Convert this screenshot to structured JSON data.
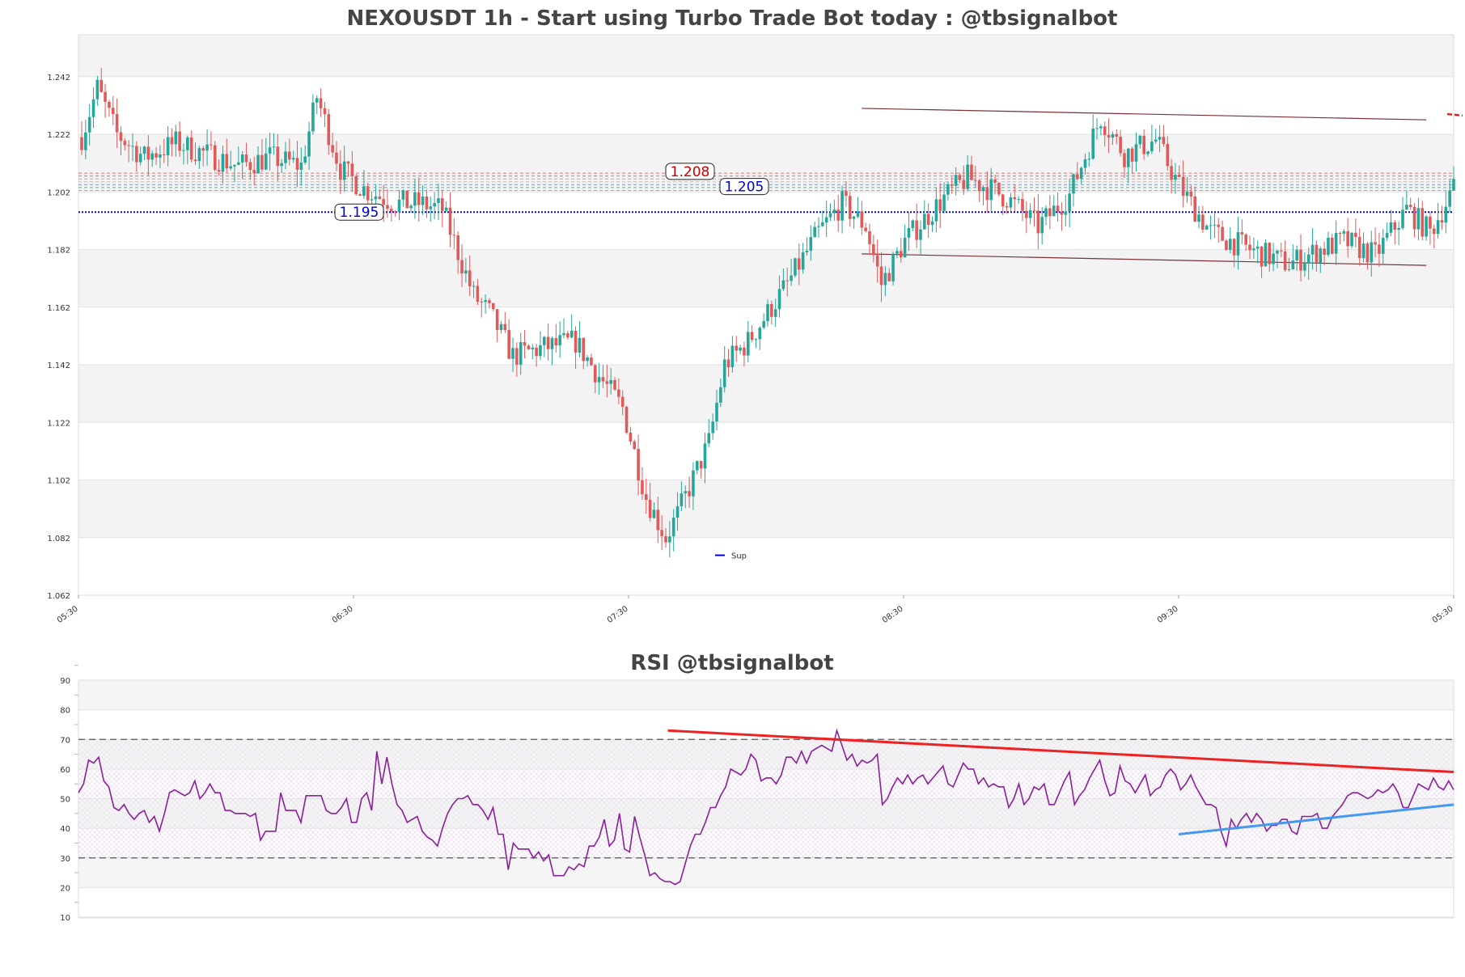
{
  "chart_data": [
    {
      "type": "candlestick",
      "title": "NEXOUSDT 1h - Start using Turbo Trade Bot today : @tbsignalbot",
      "ylim": [
        1.062,
        1.262
      ],
      "ytick_labels": [
        "1.062",
        "1.082",
        "1.102",
        "1.122",
        "1.142",
        "1.162",
        "1.182",
        "1.202",
        "1.222",
        "1.242"
      ],
      "xtick_labels": [
        "05:30",
        "06:30",
        "07:30",
        "08:30",
        "09:30",
        "05:30"
      ],
      "grid": true,
      "colors": {
        "up": "#26a69a",
        "down": "#e05a5a"
      },
      "price_path": [
        [
          0,
          1.221
        ],
        [
          4,
          1.238
        ],
        [
          9,
          1.222
        ],
        [
          16,
          1.214
        ],
        [
          24,
          1.219
        ],
        [
          32,
          1.215
        ],
        [
          40,
          1.211
        ],
        [
          48,
          1.214
        ],
        [
          56,
          1.211
        ],
        [
          60,
          1.235
        ],
        [
          66,
          1.21
        ],
        [
          72,
          1.203
        ],
        [
          80,
          1.198
        ],
        [
          86,
          1.198
        ],
        [
          92,
          1.196
        ],
        [
          100,
          1.166
        ],
        [
          104,
          1.16
        ],
        [
          110,
          1.145
        ],
        [
          118,
          1.148
        ],
        [
          126,
          1.15
        ],
        [
          132,
          1.138
        ],
        [
          138,
          1.127
        ],
        [
          144,
          1.096
        ],
        [
          149,
          1.082
        ],
        [
          152,
          1.09
        ],
        [
          160,
          1.115
        ],
        [
          164,
          1.142
        ],
        [
          170,
          1.15
        ],
        [
          180,
          1.17
        ],
        [
          188,
          1.188
        ],
        [
          194,
          1.198
        ],
        [
          200,
          1.19
        ],
        [
          204,
          1.17
        ],
        [
          210,
          1.185
        ],
        [
          220,
          1.2
        ],
        [
          226,
          1.207
        ],
        [
          236,
          1.2
        ],
        [
          244,
          1.19
        ],
        [
          252,
          1.201
        ],
        [
          260,
          1.228
        ],
        [
          266,
          1.215
        ],
        [
          274,
          1.22
        ],
        [
          280,
          1.204
        ],
        [
          288,
          1.188
        ],
        [
          298,
          1.182
        ],
        [
          308,
          1.177
        ],
        [
          316,
          1.182
        ],
        [
          322,
          1.185
        ],
        [
          330,
          1.18
        ],
        [
          338,
          1.196
        ],
        [
          344,
          1.188
        ],
        [
          350,
          1.203
        ]
      ],
      "lines": [
        {
          "label": "1.208",
          "value": 1.208,
          "color": "#cc0000"
        },
        {
          "label": "1.205",
          "value": 1.205,
          "color": "#0000cc"
        },
        {
          "label": "1.195",
          "value": 1.195,
          "color": "#0000cc"
        }
      ],
      "support_marker": {
        "label": "Sup",
        "value": 1.077
      },
      "channel": {
        "upper": [
          [
            1.231,
            1.227
          ]
        ],
        "lower": [
          [
            1.1805,
            1.1765
          ]
        ]
      }
    },
    {
      "type": "line",
      "title": "RSI @tbsignalbot",
      "ylim": [
        10,
        90
      ],
      "ytick_labels": [
        "10",
        "20",
        "30",
        "40",
        "50",
        "60",
        "70",
        "80",
        "90"
      ],
      "overbought": 70,
      "oversold": 30,
      "series": [
        {
          "values": [
            52,
            55,
            63,
            62,
            64,
            56,
            54,
            47,
            46,
            48,
            45,
            43,
            45,
            46,
            42,
            44,
            39,
            45,
            52,
            53,
            52,
            51,
            52,
            56,
            50,
            52,
            55,
            52,
            52,
            46,
            46,
            45,
            45,
            45,
            44,
            45,
            36,
            39,
            39,
            39,
            52,
            46,
            46,
            46,
            42,
            51,
            51,
            51,
            51,
            46,
            45,
            45,
            47,
            50,
            42,
            42,
            50,
            52,
            46,
            66,
            55,
            64,
            55,
            48,
            46,
            42,
            43,
            44,
            39,
            37,
            36,
            34,
            40,
            45,
            48,
            50,
            50,
            51,
            48,
            48,
            46,
            43,
            47,
            38,
            38,
            26,
            35,
            33,
            33,
            33,
            30,
            32,
            29,
            31,
            24,
            24,
            24,
            27,
            26,
            28,
            27,
            34,
            34,
            37,
            43,
            34,
            36,
            45,
            33,
            32,
            44,
            37,
            31,
            24,
            25,
            23,
            22,
            22,
            21,
            22,
            28,
            34,
            38,
            38,
            42,
            47,
            47,
            51,
            54,
            60,
            59,
            58,
            60,
            65,
            63,
            56,
            57,
            57,
            55,
            58,
            64,
            64,
            62,
            66,
            62,
            66,
            67,
            68,
            67,
            66,
            73,
            68,
            63,
            65,
            61,
            63,
            62,
            63,
            65,
            48,
            50,
            54,
            57,
            55,
            58,
            55,
            57,
            58,
            55,
            57,
            59,
            61,
            55,
            54,
            58,
            62,
            60,
            60,
            55,
            57,
            54,
            55,
            54,
            54,
            47,
            50,
            55,
            48,
            50,
            54,
            53,
            55,
            48,
            48,
            52,
            56,
            59,
            48,
            51,
            53,
            57,
            60,
            63,
            56,
            51,
            52,
            61,
            56,
            55,
            52,
            55,
            58,
            51,
            53,
            54,
            58,
            60,
            58,
            53,
            55,
            58,
            54,
            51,
            48,
            48,
            47,
            39,
            34,
            43,
            40,
            43,
            45,
            42,
            45,
            43,
            39,
            41,
            41,
            43,
            43,
            39,
            38,
            44,
            44,
            44,
            45,
            40,
            40,
            44,
            46,
            48,
            51,
            52,
            52,
            51,
            50,
            51,
            53,
            52,
            53,
            55,
            52,
            47,
            47,
            51,
            55,
            54,
            53,
            57,
            54,
            53,
            56,
            53
          ]
        }
      ],
      "trendlines": [
        {
          "from": [
            150,
            73
          ],
          "to": [
            350,
            59
          ],
          "color": "#ee2222"
        },
        {
          "from": [
            280,
            38
          ],
          "to": [
            350,
            48
          ],
          "color": "#4499ee"
        }
      ]
    }
  ]
}
